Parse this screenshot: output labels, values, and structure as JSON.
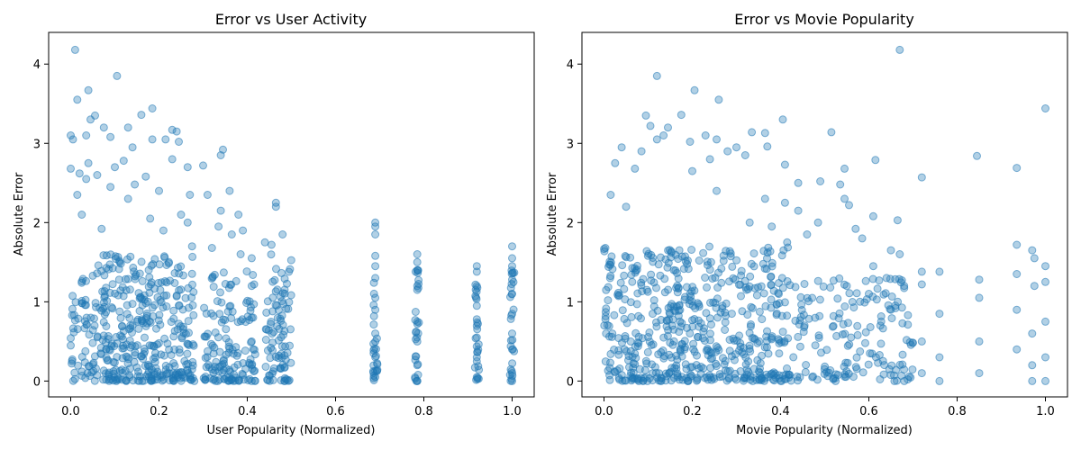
{
  "style": {
    "marker_color": "#1f77b4",
    "marker_alpha": 0.35
  },
  "chart_data": [
    {
      "type": "scatter",
      "title": "Error vs User Activity",
      "xlabel": "User Popularity (Normalized)",
      "ylabel": "Absolute Error",
      "xlim": [
        -0.05,
        1.05
      ],
      "ylim": [
        -0.2,
        4.4
      ],
      "xticks": [
        0.0,
        0.2,
        0.4,
        0.6,
        0.8,
        1.0
      ],
      "xtick_labels": [
        "0.0",
        "0.2",
        "0.4",
        "0.6",
        "0.8",
        "1.0"
      ],
      "yticks": [
        0,
        1,
        2,
        3,
        4
      ],
      "ytick_labels": [
        "0",
        "1",
        "2",
        "3",
        "4"
      ],
      "grid": false,
      "series": [
        {
          "points": [
            [
              0.01,
              4.18
            ],
            [
              0.105,
              3.85
            ],
            [
              0.04,
              3.67
            ],
            [
              0.015,
              3.55
            ],
            [
              0.185,
              3.44
            ],
            [
              0.16,
              3.36
            ],
            [
              0.055,
              3.35
            ],
            [
              0.045,
              3.3
            ],
            [
              0.075,
              3.2
            ],
            [
              0.13,
              3.2
            ],
            [
              0.23,
              3.17
            ],
            [
              0.24,
              3.15
            ],
            [
              0.0,
              3.1
            ],
            [
              0.005,
              3.05
            ],
            [
              0.035,
              3.1
            ],
            [
              0.09,
              3.08
            ],
            [
              0.185,
              3.05
            ],
            [
              0.215,
              3.05
            ],
            [
              0.245,
              3.02
            ],
            [
              0.14,
              2.95
            ],
            [
              0.345,
              2.92
            ],
            [
              0.34,
              2.85
            ],
            [
              0.23,
              2.8
            ],
            [
              0.12,
              2.78
            ],
            [
              0.04,
              2.75
            ],
            [
              0.3,
              2.72
            ],
            [
              0.265,
              2.7
            ],
            [
              0.1,
              2.7
            ],
            [
              0.0,
              2.68
            ],
            [
              0.02,
              2.62
            ],
            [
              0.06,
              2.6
            ],
            [
              0.17,
              2.58
            ],
            [
              0.035,
              2.55
            ],
            [
              0.145,
              2.48
            ],
            [
              0.09,
              2.45
            ],
            [
              0.2,
              2.4
            ],
            [
              0.36,
              2.4
            ],
            [
              0.015,
              2.35
            ],
            [
              0.31,
              2.35
            ],
            [
              0.27,
              2.35
            ],
            [
              0.13,
              2.3
            ],
            [
              0.465,
              2.25
            ],
            [
              0.465,
              2.2
            ],
            [
              0.34,
              2.15
            ],
            [
              0.25,
              2.1
            ],
            [
              0.38,
              2.1
            ],
            [
              0.025,
              2.1
            ],
            [
              0.18,
              2.05
            ],
            [
              0.265,
              2.0
            ],
            [
              0.335,
              1.95
            ],
            [
              0.07,
              1.92
            ],
            [
              0.21,
              1.9
            ],
            [
              0.39,
              1.9
            ],
            [
              0.48,
              1.85
            ],
            [
              0.365,
              1.85
            ],
            [
              0.44,
              1.75
            ],
            [
              0.275,
              1.7
            ],
            [
              0.455,
              1.72
            ],
            [
              0.32,
              1.68
            ],
            [
              0.385,
              1.6
            ],
            [
              0.69,
              2.0
            ],
            [
              0.69,
              1.95
            ],
            [
              0.69,
              1.85
            ],
            [
              0.69,
              1.58
            ],
            [
              0.69,
              1.45
            ],
            [
              0.69,
              1.3
            ],
            [
              0.69,
              1.05
            ],
            [
              0.69,
              0.9
            ],
            [
              0.69,
              0.6
            ],
            [
              0.69,
              0.3
            ],
            [
              0.69,
              0.05
            ],
            [
              0.785,
              1.6
            ],
            [
              0.785,
              1.5
            ],
            [
              0.785,
              1.4
            ],
            [
              0.785,
              1.2
            ],
            [
              0.785,
              1.15
            ],
            [
              0.785,
              0.75
            ],
            [
              0.785,
              0.5
            ],
            [
              0.785,
              0.2
            ],
            [
              0.785,
              0.0
            ],
            [
              0.92,
              1.45
            ],
            [
              0.92,
              1.38
            ],
            [
              0.92,
              1.2
            ],
            [
              0.92,
              0.95
            ],
            [
              0.92,
              0.78
            ],
            [
              0.92,
              0.55
            ],
            [
              0.92,
              0.3
            ],
            [
              0.92,
              0.05
            ],
            [
              1.0,
              1.7
            ],
            [
              1.0,
              1.55
            ],
            [
              1.0,
              1.45
            ],
            [
              1.0,
              1.28
            ],
            [
              1.0,
              1.1
            ],
            [
              1.0,
              0.85
            ],
            [
              1.0,
              0.6
            ],
            [
              1.0,
              0.4
            ],
            [
              1.0,
              0.1
            ],
            [
              1.0,
              0.0
            ],
            [
              0.41,
              1.55
            ],
            [
              0.41,
              1.2
            ],
            [
              0.41,
              0.8
            ],
            [
              0.41,
              0.5
            ],
            [
              0.41,
              0.2
            ],
            [
              0.41,
              0.0
            ]
          ],
          "dense_bands": [
            {
              "x_range": [
                0.0,
                0.28
              ],
              "y_max": 1.6,
              "count": 420
            },
            {
              "x_range": [
                0.3,
                0.42
              ],
              "y_max": 1.4,
              "count": 140
            },
            {
              "x_range": [
                0.44,
                0.5
              ],
              "y_max": 1.6,
              "count": 90
            },
            {
              "x_range": [
                0.685,
                0.695
              ],
              "y_max": 1.3,
              "count": 25
            },
            {
              "x_range": [
                0.78,
                0.79
              ],
              "y_max": 1.4,
              "count": 25
            },
            {
              "x_range": [
                0.915,
                0.925
              ],
              "y_max": 1.3,
              "count": 25
            },
            {
              "x_range": [
                0.995,
                1.005
              ],
              "y_max": 1.4,
              "count": 25
            }
          ]
        }
      ]
    },
    {
      "type": "scatter",
      "title": "Error vs Movie Popularity",
      "xlabel": "Movie Popularity (Normalized)",
      "ylabel": "Absolute Error",
      "xlim": [
        -0.05,
        1.05
      ],
      "ylim": [
        -0.2,
        4.4
      ],
      "xticks": [
        0.0,
        0.2,
        0.4,
        0.6,
        0.8,
        1.0
      ],
      "xtick_labels": [
        "0.0",
        "0.2",
        "0.4",
        "0.6",
        "0.8",
        "1.0"
      ],
      "yticks": [
        0,
        1,
        2,
        3,
        4
      ],
      "ytick_labels": [
        "0",
        "1",
        "2",
        "3",
        "4"
      ],
      "grid": false,
      "series": [
        {
          "points": [
            [
              0.67,
              4.18
            ],
            [
              0.12,
              3.85
            ],
            [
              0.205,
              3.67
            ],
            [
              0.26,
              3.55
            ],
            [
              1.0,
              3.44
            ],
            [
              0.175,
              3.36
            ],
            [
              0.095,
              3.35
            ],
            [
              0.405,
              3.3
            ],
            [
              0.145,
              3.2
            ],
            [
              0.105,
              3.22
            ],
            [
              0.335,
              3.14
            ],
            [
              0.365,
              3.13
            ],
            [
              0.515,
              3.14
            ],
            [
              0.135,
              3.1
            ],
            [
              0.195,
              3.02
            ],
            [
              0.23,
              3.1
            ],
            [
              0.255,
              3.05
            ],
            [
              0.12,
              3.05
            ],
            [
              0.37,
              2.96
            ],
            [
              0.04,
              2.95
            ],
            [
              0.3,
              2.95
            ],
            [
              0.28,
              2.9
            ],
            [
              0.085,
              2.9
            ],
            [
              0.32,
              2.85
            ],
            [
              0.845,
              2.84
            ],
            [
              0.24,
              2.8
            ],
            [
              0.615,
              2.79
            ],
            [
              0.025,
              2.75
            ],
            [
              0.41,
              2.73
            ],
            [
              0.545,
              2.68
            ],
            [
              0.935,
              2.69
            ],
            [
              0.07,
              2.68
            ],
            [
              0.2,
              2.65
            ],
            [
              0.72,
              2.57
            ],
            [
              0.49,
              2.52
            ],
            [
              0.44,
              2.5
            ],
            [
              0.535,
              2.48
            ],
            [
              0.255,
              2.4
            ],
            [
              0.015,
              2.35
            ],
            [
              0.365,
              2.3
            ],
            [
              0.545,
              2.3
            ],
            [
              0.41,
              2.25
            ],
            [
              0.555,
              2.22
            ],
            [
              0.44,
              2.15
            ],
            [
              0.05,
              2.2
            ],
            [
              0.61,
              2.08
            ],
            [
              0.665,
              2.03
            ],
            [
              0.485,
              2.0
            ],
            [
              0.33,
              2.0
            ],
            [
              0.38,
              1.95
            ],
            [
              0.57,
              1.92
            ],
            [
              0.46,
              1.85
            ],
            [
              0.585,
              1.8
            ],
            [
              0.415,
              1.75
            ],
            [
              0.65,
              1.65
            ],
            [
              0.76,
              1.38
            ],
            [
              0.72,
              1.38
            ],
            [
              0.935,
              1.72
            ],
            [
              0.97,
              1.65
            ],
            [
              0.975,
              1.55
            ],
            [
              1.0,
              1.45
            ],
            [
              0.85,
              1.28
            ],
            [
              0.935,
              1.35
            ],
            [
              0.975,
              1.2
            ],
            [
              1.0,
              1.25
            ],
            [
              0.72,
              1.22
            ],
            [
              0.76,
              0.85
            ],
            [
              0.85,
              1.05
            ],
            [
              0.935,
              0.9
            ],
            [
              0.97,
              0.6
            ],
            [
              1.0,
              0.75
            ],
            [
              0.72,
              0.5
            ],
            [
              0.76,
              0.3
            ],
            [
              0.85,
              0.5
            ],
            [
              0.935,
              0.4
            ],
            [
              0.97,
              0.2
            ],
            [
              1.0,
              0.3
            ],
            [
              0.76,
              0.0
            ],
            [
              0.85,
              0.1
            ],
            [
              0.97,
              0.0
            ],
            [
              1.0,
              0.0
            ],
            [
              0.72,
              0.1
            ],
            [
              0.61,
              1.45
            ],
            [
              0.64,
              1.3
            ],
            [
              0.67,
              1.6
            ],
            [
              0.6,
              1.1
            ],
            [
              0.65,
              0.9
            ],
            [
              0.68,
              1.2
            ],
            [
              0.55,
              1.2
            ],
            [
              0.58,
              1.0
            ]
          ],
          "dense_bands": [
            {
              "x_range": [
                0.0,
                0.42
              ],
              "y_max": 1.7,
              "count": 560
            },
            {
              "x_range": [
                0.42,
                0.7
              ],
              "y_max": 1.3,
              "count": 160
            }
          ]
        }
      ]
    }
  ]
}
